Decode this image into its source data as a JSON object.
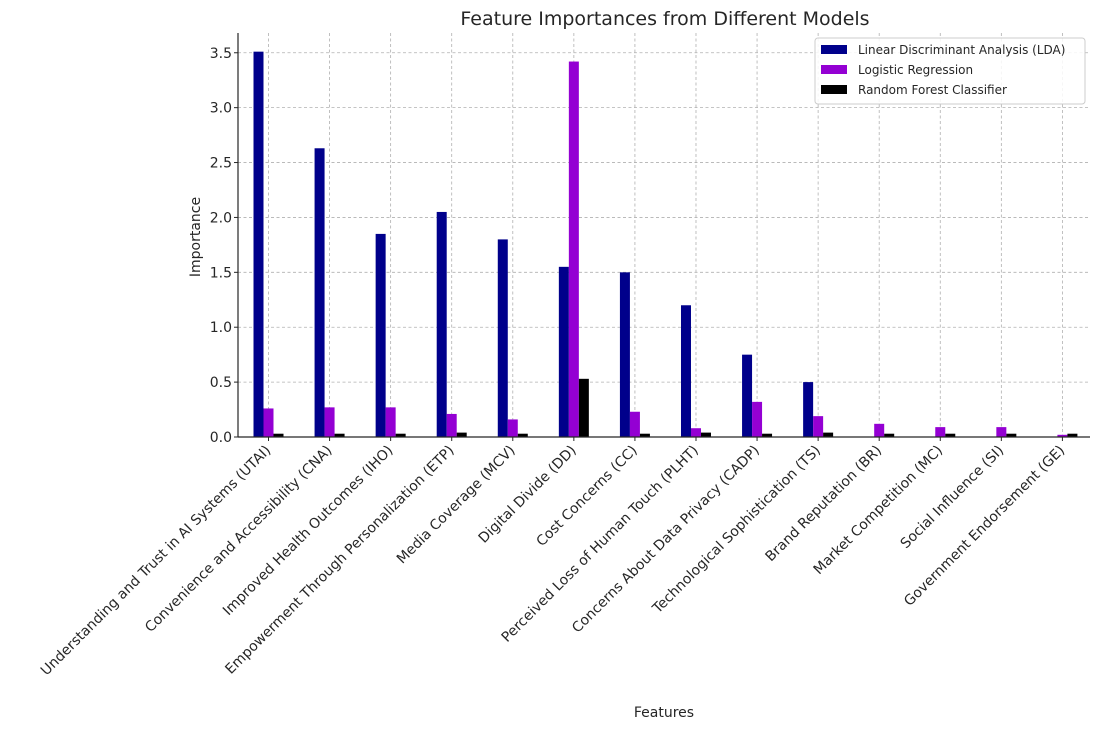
{
  "chart_data": {
    "type": "bar",
    "title": "Feature Importances from Different Models",
    "xlabel": "Features",
    "ylabel": "Importance",
    "ylim": [
      0,
      3.68
    ],
    "yticks": [
      "0.0",
      "0.5",
      "1.0",
      "1.5",
      "2.0",
      "2.5",
      "3.0",
      "3.5"
    ],
    "grid": true,
    "legend_position": "top-right",
    "categories": [
      "Understanding and Trust in AI Systems (UTAI)",
      "Convenience and Accessibility (CNA)",
      "Improved Health Outcomes (IHO)",
      "Empowerment Through Personalization (ETP)",
      "Media Coverage (MCV)",
      "Digital Divide (DD)",
      "Cost Concerns (CC)",
      "Perceived Loss of Human Touch (PLHT)",
      "Concerns About Data Privacy (CADP)",
      "Technological Sophistication (TS)",
      "Brand Reputation (BR)",
      "Market Competition (MC)",
      "Social Influence (SI)",
      "Government Endorsement (GE)"
    ],
    "series": [
      {
        "name": "Linear Discriminant Analysis (LDA)",
        "color": "#00008b",
        "values": [
          3.51,
          2.63,
          1.85,
          2.05,
          1.8,
          1.55,
          1.5,
          1.2,
          0.75,
          0.5,
          0.0,
          0.0,
          0.0,
          0.0
        ]
      },
      {
        "name": "Logistic Regression",
        "color": "#9400d3",
        "values": [
          0.26,
          0.27,
          0.27,
          0.21,
          0.16,
          3.42,
          0.23,
          0.08,
          0.32,
          0.19,
          0.12,
          0.09,
          0.09,
          0.02
        ]
      },
      {
        "name": "Random Forest Classifier",
        "color": "#000000",
        "values": [
          0.03,
          0.03,
          0.03,
          0.04,
          0.03,
          0.53,
          0.03,
          0.04,
          0.03,
          0.04,
          0.03,
          0.03,
          0.03,
          0.03
        ]
      }
    ]
  }
}
